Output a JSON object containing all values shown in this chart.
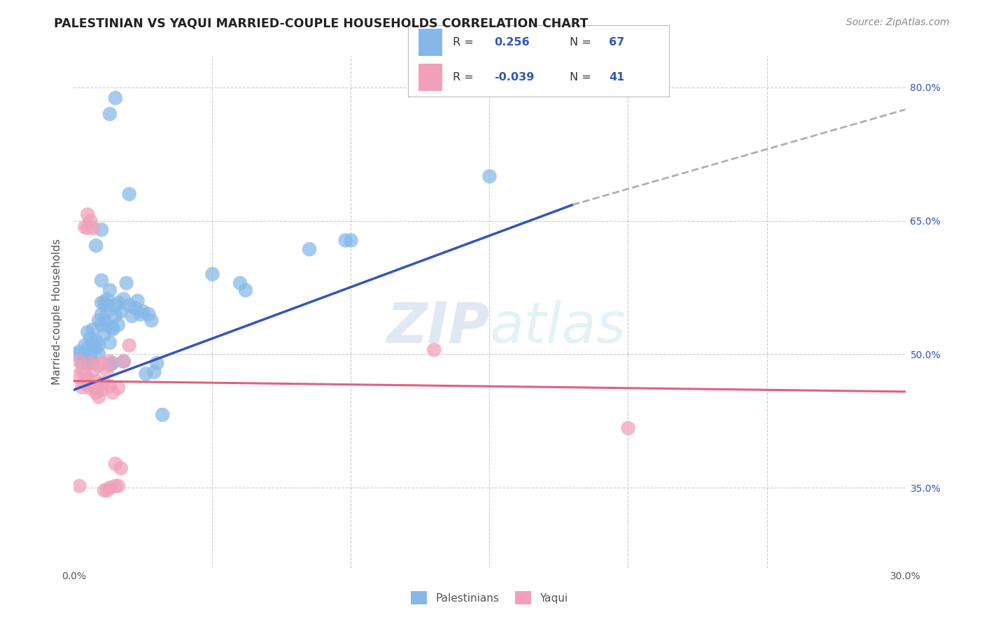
{
  "title": "PALESTINIAN VS YAQUI MARRIED-COUPLE HOUSEHOLDS CORRELATION CHART",
  "source": "Source: ZipAtlas.com",
  "ylabel": "Married-couple Households",
  "xlabel": "",
  "xlim": [
    0.0,
    0.3
  ],
  "ylim": [
    0.26,
    0.835
  ],
  "grid_color": "#cccccc",
  "background_color": "#ffffff",
  "watermark": "ZIPatlas",
  "blue_color": "#85B8E8",
  "pink_color": "#F0A0B8",
  "blue_line_color": "#3355BB",
  "pink_line_color": "#E06080",
  "dashed_line_color": "#b0b0b0",
  "legend_text_color": "#3355BB",
  "title_color": "#222222",
  "right_tick_color": "#3355BB",
  "blue_scatter": [
    [
      0.001,
      0.5
    ],
    [
      0.002,
      0.503
    ],
    [
      0.003,
      0.49
    ],
    [
      0.004,
      0.51
    ],
    [
      0.004,
      0.5
    ],
    [
      0.005,
      0.507
    ],
    [
      0.005,
      0.525
    ],
    [
      0.005,
      0.492
    ],
    [
      0.006,
      0.518
    ],
    [
      0.006,
      0.5
    ],
    [
      0.007,
      0.512
    ],
    [
      0.007,
      0.49
    ],
    [
      0.007,
      0.528
    ],
    [
      0.008,
      0.507
    ],
    [
      0.008,
      0.515
    ],
    [
      0.009,
      0.538
    ],
    [
      0.009,
      0.5
    ],
    [
      0.009,
      0.51
    ],
    [
      0.01,
      0.545
    ],
    [
      0.01,
      0.558
    ],
    [
      0.01,
      0.583
    ],
    [
      0.01,
      0.533
    ],
    [
      0.011,
      0.558
    ],
    [
      0.011,
      0.522
    ],
    [
      0.011,
      0.538
    ],
    [
      0.012,
      0.533
    ],
    [
      0.012,
      0.548
    ],
    [
      0.012,
      0.562
    ],
    [
      0.012,
      0.555
    ],
    [
      0.013,
      0.488
    ],
    [
      0.013,
      0.513
    ],
    [
      0.013,
      0.572
    ],
    [
      0.014,
      0.528
    ],
    [
      0.014,
      0.49
    ],
    [
      0.014,
      0.53
    ],
    [
      0.015,
      0.543
    ],
    [
      0.015,
      0.555
    ],
    [
      0.016,
      0.533
    ],
    [
      0.016,
      0.558
    ],
    [
      0.017,
      0.548
    ],
    [
      0.018,
      0.562
    ],
    [
      0.018,
      0.492
    ],
    [
      0.019,
      0.58
    ],
    [
      0.02,
      0.555
    ],
    [
      0.021,
      0.543
    ],
    [
      0.022,
      0.552
    ],
    [
      0.023,
      0.56
    ],
    [
      0.024,
      0.545
    ],
    [
      0.025,
      0.548
    ],
    [
      0.026,
      0.478
    ],
    [
      0.027,
      0.545
    ],
    [
      0.028,
      0.538
    ],
    [
      0.029,
      0.48
    ],
    [
      0.03,
      0.49
    ],
    [
      0.032,
      0.432
    ],
    [
      0.05,
      0.59
    ],
    [
      0.06,
      0.58
    ],
    [
      0.062,
      0.572
    ],
    [
      0.085,
      0.618
    ],
    [
      0.098,
      0.628
    ],
    [
      0.1,
      0.628
    ],
    [
      0.15,
      0.7
    ],
    [
      0.013,
      0.77
    ],
    [
      0.015,
      0.788
    ],
    [
      0.01,
      0.64
    ],
    [
      0.008,
      0.622
    ],
    [
      0.02,
      0.68
    ]
  ],
  "pink_scatter": [
    [
      0.001,
      0.475
    ],
    [
      0.002,
      0.492
    ],
    [
      0.002,
      0.352
    ],
    [
      0.003,
      0.482
    ],
    [
      0.003,
      0.463
    ],
    [
      0.004,
      0.467
    ],
    [
      0.004,
      0.477
    ],
    [
      0.004,
      0.643
    ],
    [
      0.005,
      0.642
    ],
    [
      0.005,
      0.657
    ],
    [
      0.005,
      0.472
    ],
    [
      0.006,
      0.49
    ],
    [
      0.006,
      0.462
    ],
    [
      0.006,
      0.65
    ],
    [
      0.007,
      0.482
    ],
    [
      0.007,
      0.465
    ],
    [
      0.007,
      0.642
    ],
    [
      0.008,
      0.462
    ],
    [
      0.008,
      0.457
    ],
    [
      0.008,
      0.47
    ],
    [
      0.009,
      0.452
    ],
    [
      0.009,
      0.487
    ],
    [
      0.01,
      0.46
    ],
    [
      0.01,
      0.467
    ],
    [
      0.01,
      0.49
    ],
    [
      0.011,
      0.467
    ],
    [
      0.011,
      0.347
    ],
    [
      0.012,
      0.482
    ],
    [
      0.012,
      0.347
    ],
    [
      0.013,
      0.35
    ],
    [
      0.013,
      0.464
    ],
    [
      0.013,
      0.492
    ],
    [
      0.014,
      0.457
    ],
    [
      0.015,
      0.352
    ],
    [
      0.015,
      0.377
    ],
    [
      0.016,
      0.462
    ],
    [
      0.016,
      0.352
    ],
    [
      0.017,
      0.372
    ],
    [
      0.018,
      0.492
    ],
    [
      0.2,
      0.417
    ],
    [
      0.02,
      0.51
    ],
    [
      0.13,
      0.505
    ]
  ],
  "blue_trend": [
    0.0,
    0.18,
    0.46,
    0.668
  ],
  "blue_dashed": [
    0.18,
    0.3,
    0.668,
    0.775
  ],
  "pink_trend": [
    0.0,
    0.3,
    0.47,
    0.458
  ]
}
